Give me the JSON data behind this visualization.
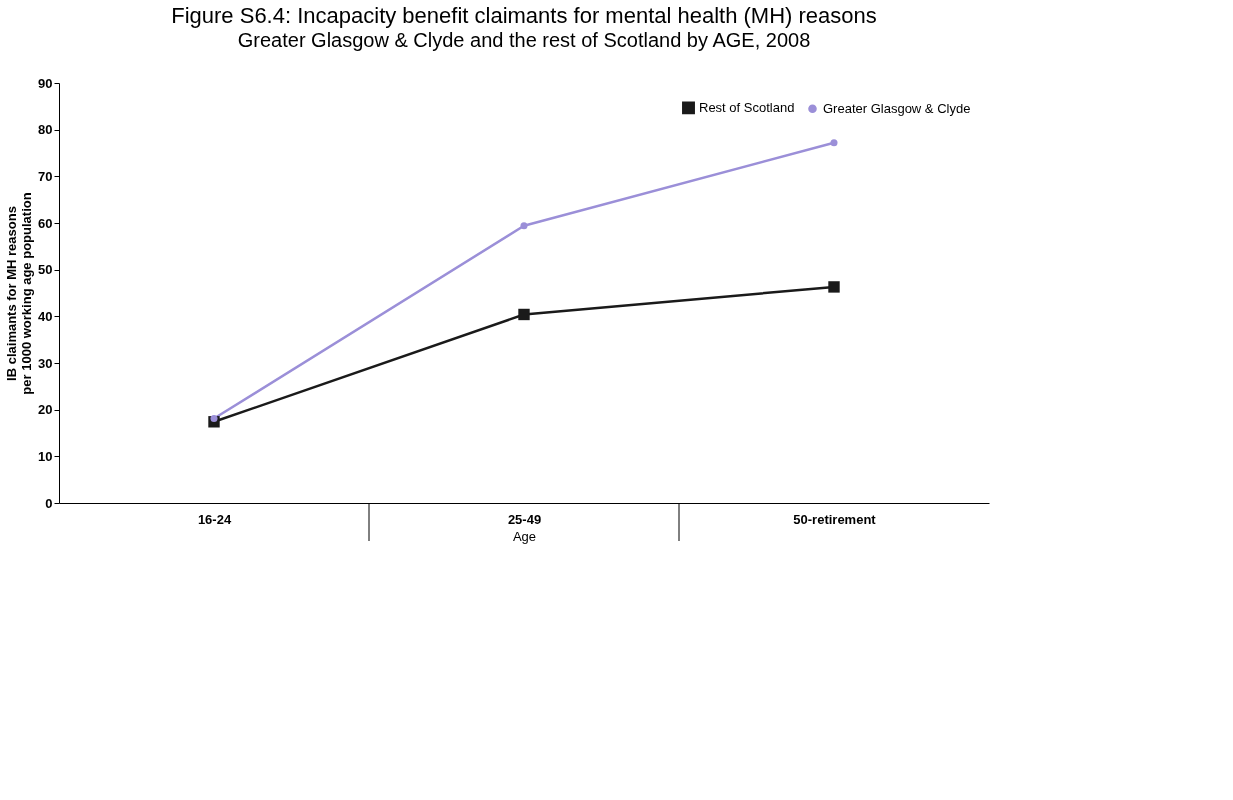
{
  "chart_data": {
    "type": "line",
    "title": "Figure S6.4: Incapacity benefit claimants for mental health (MH) reasons",
    "subtitle": "Greater Glasgow & Clyde and the rest of Scotland by AGE, 2008",
    "xlabel": "Age",
    "ylabel": "IB claimants for MH reasons\nper 1000 working age population",
    "categories": [
      "16-24",
      "25-49",
      "50-retirement"
    ],
    "series": [
      {
        "name": "Rest of Scotland",
        "color": "#1a1a1a",
        "marker": "square",
        "values": [
          17.4,
          40.4,
          46.3
        ]
      },
      {
        "name": "Greater Glasgow & Clyde",
        "color": "#9b8fd8",
        "marker": "circle",
        "values": [
          18.1,
          59.4,
          77.2
        ]
      }
    ],
    "ylim": [
      0,
      90
    ],
    "yticks": [
      0,
      10,
      20,
      30,
      40,
      50,
      60,
      70,
      80,
      90
    ],
    "grid": false,
    "legend": "top right",
    "line_style": "solid"
  }
}
